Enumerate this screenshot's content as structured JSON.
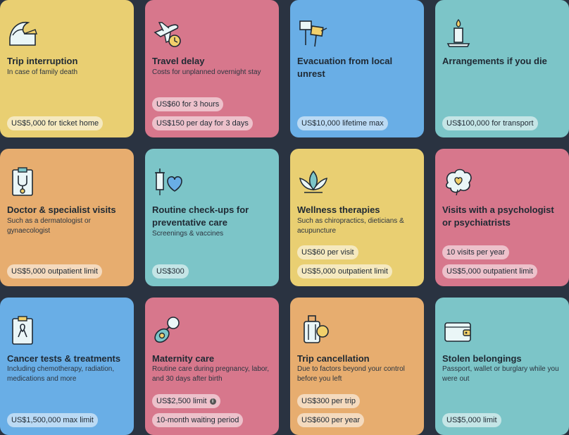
{
  "cards": [
    {
      "title": "Trip interruption",
      "desc": "In case of family death",
      "pills": [
        "US$5,000 for ticket home"
      ],
      "icon": "wave-hand-icon",
      "color": "#e9cf72"
    },
    {
      "title": "Travel delay",
      "desc": "Costs for unplanned overnight stay",
      "pills": [
        "US$60 for 3 hours",
        "US$150 per day for 3 days"
      ],
      "icon": "airplane-clock-icon",
      "color": "#d7778c"
    },
    {
      "title": "Evacuation from local unrest",
      "desc": "",
      "pills": [
        "US$10,000 lifetime max"
      ],
      "icon": "protest-signs-icon",
      "color": "#69aee6"
    },
    {
      "title": "Arrangements if you die",
      "desc": "",
      "pills": [
        "US$100,000 for transport"
      ],
      "icon": "candle-icon",
      "color": "#7cc5c8"
    },
    {
      "title": "Doctor & specialist visits",
      "desc": "Such as a dermatologist or gynaecologist",
      "pills": [
        "US$5,000 outpatient limit"
      ],
      "icon": "clipboard-stethoscope-icon",
      "color": "#e7ad6f"
    },
    {
      "title": "Routine check-ups for preventative care",
      "desc": "Screenings & vaccines",
      "pills": [
        "US$300"
      ],
      "icon": "syringe-heart-icon",
      "color": "#7cc5c8"
    },
    {
      "title": "Wellness therapies",
      "desc": "Such as chiropractics, dieticians & acupuncture",
      "pills": [
        "US$60 per visit",
        "US$5,000 outpatient limit"
      ],
      "icon": "lotus-icon",
      "color": "#e9cf72"
    },
    {
      "title": "Visits with a psychologist or psychiatrists",
      "desc": "",
      "pills": [
        "10 visits per year",
        "US$5,000 outpatient limit"
      ],
      "icon": "brain-heart-icon",
      "color": "#d7778c"
    },
    {
      "title": "Cancer tests & treatments",
      "desc": "Including chemotherapy, radiation, medications and more",
      "pills": [
        "US$1,500,000 max limit"
      ],
      "icon": "clipboard-ribbon-icon",
      "color": "#69aee6"
    },
    {
      "title": "Maternity care",
      "desc": "Routine care during pregnancy, labor, and 30 days after birth",
      "pills": [
        "US$2,500 limit",
        "10-month waiting period"
      ],
      "icon": "pacifier-icon",
      "color": "#d7778c"
    },
    {
      "title": "Trip cancellation",
      "desc": "Due to factors beyond your control before you left",
      "pills": [
        "US$300 per trip",
        "US$600 per year"
      ],
      "icon": "suitcase-icon",
      "color": "#e7ad6f"
    },
    {
      "title": "Stolen belongings",
      "desc": "Passport, wallet or burglary while you were out",
      "pills": [
        "US$5,000 limit"
      ],
      "icon": "wallet-icon",
      "color": "#7cc5c8"
    }
  ],
  "info_icon_glyph": "i"
}
